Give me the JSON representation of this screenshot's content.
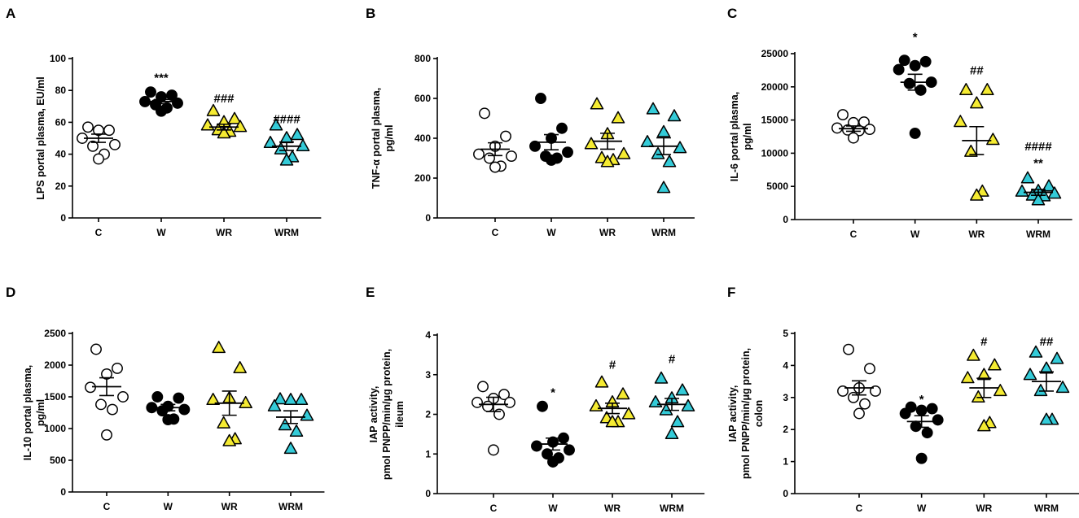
{
  "colors": {
    "C": "#ffffff",
    "W": "#000000",
    "WR": "#f5eb32",
    "WRM": "#34cbd8",
    "stroke": "#000000"
  },
  "chart_data": [
    {
      "panel": "A",
      "type": "scatter",
      "ylabel_lines": [
        "LPS portal plasma, EU/ml"
      ],
      "ylim": [
        0,
        100
      ],
      "yticks": [
        "0",
        "20",
        "40",
        "60",
        "80",
        "100"
      ],
      "categories": [
        "C",
        "W",
        "WR",
        "WRM"
      ],
      "series": [
        {
          "name": "C",
          "marker": "circle",
          "values": [
            57,
            55,
            55,
            50,
            46,
            45,
            40,
            37
          ],
          "mean": 50,
          "sem": 2.6
        },
        {
          "name": "W",
          "marker": "circle",
          "values": [
            79,
            77,
            76,
            73,
            72,
            71,
            69,
            67
          ],
          "mean": 73,
          "sem": 1.3
        },
        {
          "name": "WR",
          "marker": "triangle",
          "values": [
            67,
            62,
            60,
            58,
            57,
            55,
            54,
            53
          ],
          "mean": 57,
          "sem": 1.8
        },
        {
          "name": "WRM",
          "marker": "triangle",
          "values": [
            58,
            52,
            50,
            47,
            45,
            43,
            38,
            36
          ],
          "mean": 45,
          "sem": 2.6
        }
      ],
      "annotations": [
        {
          "category": "W",
          "text": "***",
          "y": 88
        },
        {
          "category": "WR",
          "text": "###",
          "y": 75
        },
        {
          "category": "WRM",
          "text": "####",
          "y": 62
        }
      ]
    },
    {
      "panel": "B",
      "type": "scatter",
      "ylabel_lines": [
        "TNF-α portal plasma,",
        "pg/ml"
      ],
      "ylim": [
        0,
        800
      ],
      "yticks": [
        "0",
        "200",
        "400",
        "600",
        "800"
      ],
      "categories": [
        "C",
        "W",
        "WR",
        "WRM"
      ],
      "series": [
        {
          "name": "C",
          "marker": "circle",
          "values": [
            525,
            410,
            360,
            320,
            310,
            300,
            260,
            255
          ],
          "mean": 345,
          "sem": 32
        },
        {
          "name": "W",
          "marker": "circle",
          "values": [
            600,
            450,
            400,
            360,
            330,
            310,
            300,
            290
          ],
          "mean": 380,
          "sem": 38
        },
        {
          "name": "WR",
          "marker": "triangle",
          "values": [
            570,
            500,
            420,
            370,
            320,
            300,
            290,
            280
          ],
          "mean": 385,
          "sem": 40
        },
        {
          "name": "WRM",
          "marker": "triangle",
          "values": [
            545,
            510,
            430,
            380,
            350,
            320,
            280,
            150
          ],
          "mean": 360,
          "sem": 42
        }
      ],
      "annotations": []
    },
    {
      "panel": "C",
      "type": "scatter",
      "ylabel_lines": [
        "IL-6 portal plasma,",
        "pg/ml"
      ],
      "ylim": [
        0,
        25000
      ],
      "yticks": [
        "0",
        "5000",
        "10000",
        "15000",
        "20000",
        "25000"
      ],
      "categories": [
        "C",
        "W",
        "WR",
        "WRM"
      ],
      "series": [
        {
          "name": "C",
          "marker": "circle",
          "values": [
            15800,
            14700,
            14600,
            13800,
            13600,
            13500,
            13400,
            12300
          ],
          "mean": 13700,
          "sem": 400
        },
        {
          "name": "W",
          "marker": "circle",
          "values": [
            24000,
            23800,
            23200,
            22600,
            20700,
            20500,
            19500,
            13000
          ],
          "mean": 20700,
          "sem": 1200
        },
        {
          "name": "WR",
          "marker": "triangle",
          "values": [
            19500,
            19500,
            17500,
            14700,
            12000,
            10200,
            4200,
            3600
          ],
          "mean": 11900,
          "sem": 2100
        },
        {
          "name": "WRM",
          "marker": "triangle",
          "values": [
            6200,
            5000,
            4300,
            4200,
            3900,
            3600,
            3500,
            2900
          ],
          "mean": 4100,
          "sem": 450
        }
      ],
      "annotations": [
        {
          "category": "W",
          "text": "*",
          "y": 27500
        },
        {
          "category": "WR",
          "text": "##",
          "y": 22500
        },
        {
          "category": "WRM",
          "text": "####",
          "y": 11000
        },
        {
          "category": "WRM",
          "text": "**",
          "y": 8500
        }
      ]
    },
    {
      "panel": "D",
      "type": "scatter",
      "ylabel_lines": [
        "IL-10 portal plasma,",
        "pg/ml"
      ],
      "ylim": [
        0,
        2500
      ],
      "yticks": [
        "0",
        "500",
        "1000",
        "1500",
        "2000",
        "2500"
      ],
      "categories": [
        "C",
        "W",
        "WR",
        "WRM"
      ],
      "series": [
        {
          "name": "C",
          "marker": "circle",
          "values": [
            2250,
            1950,
            1860,
            1650,
            1500,
            1380,
            1300,
            900
          ],
          "mean": 1660,
          "sem": 140
        },
        {
          "name": "W",
          "marker": "circle",
          "values": [
            1500,
            1480,
            1350,
            1330,
            1300,
            1280,
            1150,
            1140
          ],
          "mean": 1330,
          "sem": 50
        },
        {
          "name": "WR",
          "marker": "triangle",
          "values": [
            2270,
            1950,
            1480,
            1450,
            1400,
            1080,
            830,
            800
          ],
          "mean": 1400,
          "sem": 190
        },
        {
          "name": "WRM",
          "marker": "triangle",
          "values": [
            1460,
            1450,
            1450,
            1350,
            1200,
            1050,
            950,
            680
          ],
          "mean": 1180,
          "sem": 100
        }
      ],
      "annotations": []
    },
    {
      "panel": "E",
      "type": "scatter",
      "ylabel_lines": [
        "IAP activity,",
        "pmol PNPP/min/μg protein,",
        "ileum"
      ],
      "ylim": [
        0,
        4
      ],
      "yticks": [
        "0",
        "1",
        "2",
        "3",
        "4"
      ],
      "categories": [
        "C",
        "W",
        "WR",
        "WRM"
      ],
      "series": [
        {
          "name": "C",
          "marker": "circle",
          "values": [
            2.7,
            2.5,
            2.4,
            2.3,
            2.3,
            2.2,
            2.0,
            1.1
          ],
          "mean": 2.25,
          "sem": 0.18
        },
        {
          "name": "W",
          "marker": "circle",
          "values": [
            2.2,
            1.4,
            1.3,
            1.2,
            1.1,
            1.0,
            0.9,
            0.8
          ],
          "mean": 1.25,
          "sem": 0.15
        },
        {
          "name": "WR",
          "marker": "triangle",
          "values": [
            2.8,
            2.5,
            2.3,
            2.2,
            2.0,
            1.9,
            1.8,
            1.8
          ],
          "mean": 2.15,
          "sem": 0.13
        },
        {
          "name": "WRM",
          "marker": "triangle",
          "values": [
            2.9,
            2.6,
            2.4,
            2.3,
            2.2,
            2.1,
            1.8,
            1.5
          ],
          "mean": 2.25,
          "sem": 0.15
        }
      ],
      "annotations": [
        {
          "category": "W",
          "text": "*",
          "y": 2.55
        },
        {
          "category": "WR",
          "text": "#",
          "y": 3.25
        },
        {
          "category": "WRM",
          "text": "#",
          "y": 3.4
        }
      ]
    },
    {
      "panel": "F",
      "type": "scatter",
      "ylabel_lines": [
        "IAP activity,",
        "pmol PNPP/min/μg protein,",
        "colon"
      ],
      "ylim": [
        0,
        5
      ],
      "yticks": [
        "0",
        "1",
        "2",
        "3",
        "4",
        "5"
      ],
      "categories": [
        "C",
        "W",
        "WR",
        "WRM"
      ],
      "series": [
        {
          "name": "C",
          "marker": "circle",
          "values": [
            4.5,
            3.9,
            3.3,
            3.2,
            3.2,
            3.0,
            2.8,
            2.5
          ],
          "mean": 3.3,
          "sem": 0.22
        },
        {
          "name": "W",
          "marker": "circle",
          "values": [
            2.7,
            2.65,
            2.6,
            2.5,
            2.3,
            2.1,
            1.9,
            1.1
          ],
          "mean": 2.25,
          "sem": 0.18
        },
        {
          "name": "WR",
          "marker": "triangle",
          "values": [
            4.3,
            4.0,
            3.7,
            3.6,
            3.2,
            3.0,
            2.2,
            2.1
          ],
          "mean": 3.3,
          "sem": 0.3
        },
        {
          "name": "WRM",
          "marker": "triangle",
          "values": [
            4.4,
            4.2,
            3.9,
            3.7,
            3.3,
            3.2,
            2.3,
            2.3
          ],
          "mean": 3.5,
          "sem": 0.3
        }
      ],
      "annotations": [
        {
          "category": "W",
          "text": "*",
          "y": 2.95
        },
        {
          "category": "WR",
          "text": "#",
          "y": 4.75
        },
        {
          "category": "WRM",
          "text": "##",
          "y": 4.75
        }
      ]
    }
  ]
}
